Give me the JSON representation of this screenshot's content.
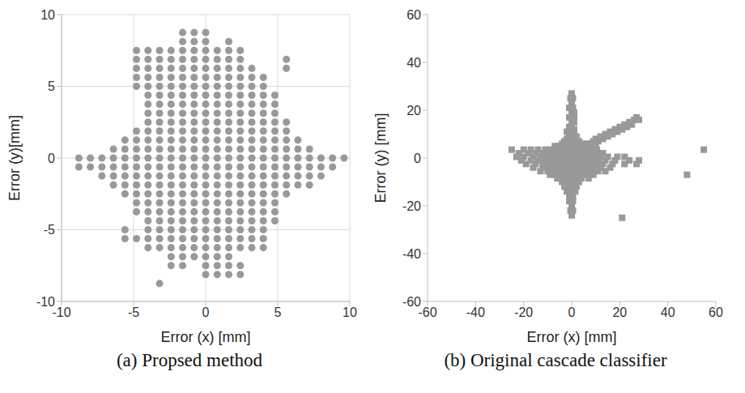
{
  "chart_data": [
    {
      "type": "scatter",
      "title": "(a) Propsed method",
      "xlabel": "Error (x) [mm]",
      "ylabel": "Error (y)[mm]",
      "xlim": [
        -10,
        10
      ],
      "ylim": [
        -10,
        10
      ],
      "xticks": [
        -10,
        -5,
        0,
        5,
        10
      ],
      "yticks": [
        -10,
        -5,
        0,
        5,
        10
      ],
      "grid": true,
      "color": "#999999",
      "marker": "circle",
      "rows": [
        {
          "y": 8.75,
          "x": [
            -1.6,
            -0.8,
            0
          ]
        },
        {
          "y": 8.125,
          "x": [
            -1.6,
            -0.8,
            0,
            1.6
          ]
        },
        {
          "y": 7.5,
          "x": [
            -4.8,
            -4,
            -3.2,
            -2.4,
            -1.6,
            -0.8,
            0,
            0.8,
            1.6,
            2.4
          ]
        },
        {
          "y": 6.875,
          "x": [
            -4.8,
            -4,
            -3.2,
            -2.4,
            -1.6,
            -0.8,
            0,
            0.8,
            1.6,
            2.4,
            5.6
          ]
        },
        {
          "y": 6.25,
          "x": [
            -4.8,
            -4,
            -3.2,
            -2.4,
            -1.6,
            -0.8,
            0,
            0.8,
            1.6,
            2.4,
            3.2,
            5.6
          ]
        },
        {
          "y": 5.625,
          "x": [
            -4.8,
            -4,
            -3.2,
            -2.4,
            -1.6,
            -0.8,
            0,
            0.8,
            1.6,
            2.4,
            3.2,
            4
          ]
        },
        {
          "y": 5,
          "x": [
            -4.8,
            -4,
            -3.2,
            -2.4,
            -1.6,
            -0.8,
            0,
            0.8,
            1.6,
            2.4,
            3.2,
            4
          ]
        },
        {
          "y": 4.375,
          "x": [
            -4,
            -3.2,
            -2.4,
            -1.6,
            -0.8,
            0,
            0.8,
            1.6,
            2.4,
            3.2,
            4,
            4.8
          ]
        },
        {
          "y": 3.75,
          "x": [
            -4,
            -3.2,
            -2.4,
            -1.6,
            -0.8,
            0,
            0.8,
            1.6,
            2.4,
            3.2,
            4,
            4.8
          ]
        },
        {
          "y": 3.125,
          "x": [
            -4,
            -3.2,
            -2.4,
            -1.6,
            -0.8,
            0,
            0.8,
            1.6,
            2.4,
            3.2,
            4,
            4.8
          ]
        },
        {
          "y": 2.5,
          "x": [
            -4,
            -3.2,
            -2.4,
            -1.6,
            -0.8,
            0,
            0.8,
            1.6,
            2.4,
            3.2,
            4,
            4.8,
            5.6
          ]
        },
        {
          "y": 1.875,
          "x": [
            -4.8,
            -4,
            -3.2,
            -2.4,
            -1.6,
            -0.8,
            0,
            0.8,
            1.6,
            2.4,
            3.2,
            4,
            4.8,
            5.6
          ]
        },
        {
          "y": 1.25,
          "x": [
            -5.6,
            -4.8,
            -4,
            -3.2,
            -2.4,
            -1.6,
            -0.8,
            0,
            0.8,
            1.6,
            2.4,
            3.2,
            4,
            4.8,
            5.6,
            6.4
          ]
        },
        {
          "y": 0.625,
          "x": [
            -6.4,
            -5.6,
            -4.8,
            -4,
            -3.2,
            -2.4,
            -1.6,
            -0.8,
            0,
            0.8,
            1.6,
            2.4,
            3.2,
            4,
            4.8,
            5.6,
            6.4,
            7.2
          ]
        },
        {
          "y": 0,
          "x": [
            -8.8,
            -8,
            -7.2,
            -6.4,
            -5.6,
            -4.8,
            -4,
            -3.2,
            -2.4,
            -1.6,
            -0.8,
            0,
            0.8,
            1.6,
            2.4,
            3.2,
            4,
            4.8,
            5.6,
            6.4,
            7.2,
            8,
            8.8,
            9.6
          ]
        },
        {
          "y": -0.625,
          "x": [
            -8.8,
            -8,
            -7.2,
            -6.4,
            -5.6,
            -4.8,
            -4,
            -3.2,
            -2.4,
            -1.6,
            -0.8,
            0,
            0.8,
            1.6,
            2.4,
            3.2,
            4,
            4.8,
            5.6,
            6.4,
            7.2,
            8,
            8.8
          ]
        },
        {
          "y": -1.25,
          "x": [
            -7.2,
            -6.4,
            -5.6,
            -4.8,
            -4,
            -3.2,
            -2.4,
            -1.6,
            -0.8,
            0,
            0.8,
            1.6,
            2.4,
            3.2,
            4,
            4.8,
            5.6,
            6.4,
            7.2,
            8
          ]
        },
        {
          "y": -1.875,
          "x": [
            -6.4,
            -5.6,
            -4.8,
            -4,
            -3.2,
            -2.4,
            -1.6,
            -0.8,
            0,
            0.8,
            1.6,
            2.4,
            3.2,
            4,
            4.8,
            5.6,
            6.4,
            7.2
          ]
        },
        {
          "y": -2.5,
          "x": [
            -5.6,
            -4.8,
            -4,
            -3.2,
            -2.4,
            -1.6,
            -0.8,
            0,
            0.8,
            1.6,
            2.4,
            3.2,
            4,
            4.8,
            5.6
          ]
        },
        {
          "y": -3.125,
          "x": [
            -4.8,
            -4,
            -3.2,
            -2.4,
            -1.6,
            -0.8,
            0,
            0.8,
            1.6,
            2.4,
            3.2,
            4,
            4.8
          ]
        },
        {
          "y": -3.75,
          "x": [
            -4.8,
            -4,
            -3.2,
            -2.4,
            -1.6,
            -0.8,
            0,
            0.8,
            1.6,
            2.4,
            3.2,
            4,
            4.8
          ]
        },
        {
          "y": -4.375,
          "x": [
            -4,
            -3.2,
            -2.4,
            -1.6,
            -0.8,
            0,
            0.8,
            1.6,
            2.4,
            3.2,
            4,
            4.8
          ]
        },
        {
          "y": -5,
          "x": [
            -5.6,
            -4,
            -3.2,
            -2.4,
            -1.6,
            -0.8,
            0,
            0.8,
            1.6,
            2.4,
            3.2,
            4
          ]
        },
        {
          "y": -5.625,
          "x": [
            -5.6,
            -4.8,
            -4,
            -3.2,
            -2.4,
            -1.6,
            -0.8,
            0,
            0.8,
            1.6,
            2.4,
            3.2,
            4
          ]
        },
        {
          "y": -6.25,
          "x": [
            -4,
            -3.2,
            -2.4,
            -1.6,
            -0.8,
            0,
            0.8,
            1.6,
            2.4,
            3.2,
            4
          ]
        },
        {
          "y": -6.875,
          "x": [
            -2.4,
            -1.6,
            -0.8,
            0,
            0.8,
            1.6
          ]
        },
        {
          "y": -7.5,
          "x": [
            -2.4,
            -1.6,
            0,
            0.8,
            1.6,
            2.4
          ]
        },
        {
          "y": -8.125,
          "x": [
            0,
            0.8,
            1.6,
            2.4
          ]
        },
        {
          "y": -8.75,
          "x": [
            -3.2
          ]
        }
      ]
    },
    {
      "type": "scatter",
      "title": "(b) Original cascade classifier",
      "xlabel": "Error (x) [mm]",
      "ylabel": "Error (y) [mm]",
      "xlim": [
        -60,
        60
      ],
      "ylim": [
        -60,
        60
      ],
      "xticks": [
        -60,
        -40,
        -20,
        0,
        20,
        40,
        60
      ],
      "yticks": [
        -60,
        -40,
        -20,
        0,
        20,
        40,
        60
      ],
      "grid": false,
      "color": "#999999",
      "marker": "square",
      "rows": [
        {
          "y": 27,
          "x": [
            0
          ]
        },
        {
          "y": 25,
          "x": [
            -0.5,
            0.5
          ]
        },
        {
          "y": 23,
          "x": [
            0
          ]
        },
        {
          "y": 21,
          "x": [
            -1,
            0.5
          ]
        },
        {
          "y": 19,
          "x": [
            0,
            1
          ]
        },
        {
          "y": 17,
          "x": [
            -1,
            0,
            1,
            27
          ]
        },
        {
          "y": 16,
          "x": [
            26,
            28
          ]
        },
        {
          "y": 15,
          "x": [
            0,
            1,
            24
          ]
        },
        {
          "y": 14,
          "x": [
            22,
            25
          ]
        },
        {
          "y": 13,
          "x": [
            -1,
            0,
            20,
            23
          ]
        },
        {
          "y": 12,
          "x": [
            1,
            18,
            21
          ]
        },
        {
          "y": 11,
          "x": [
            -2,
            0,
            16,
            19
          ]
        },
        {
          "y": 10,
          "x": [
            -1,
            1,
            14,
            17
          ]
        },
        {
          "y": 9,
          "x": [
            0,
            2,
            12,
            15
          ]
        },
        {
          "y": 8,
          "x": [
            -2,
            0,
            1,
            10,
            13
          ]
        },
        {
          "y": 7,
          "x": [
            -3,
            -1,
            1,
            3,
            9,
            11
          ]
        },
        {
          "y": 6,
          "x": [
            -4,
            -2,
            0,
            2,
            4,
            6,
            8,
            10
          ]
        },
        {
          "y": 5,
          "x": [
            -7,
            -5.5,
            -4,
            -2.5,
            -1,
            0.5,
            2,
            3.5,
            5,
            6.5,
            8
          ]
        },
        {
          "y": 3.5,
          "x": [
            -25,
            -20,
            -17,
            -14,
            -11,
            -9,
            -7.5,
            -6,
            -4.5,
            -3,
            -1.5,
            0,
            1.5,
            3,
            4.5,
            6,
            7.5,
            9,
            10.5,
            55
          ]
        },
        {
          "y": 2,
          "x": [
            -22,
            -18,
            -15,
            -12,
            -10,
            -8.5,
            -7,
            -5.5,
            -4,
            -2.5,
            -1,
            0.5,
            2,
            3.5,
            5,
            6.5,
            8,
            9.5,
            11,
            13
          ]
        },
        {
          "y": 0.5,
          "x": [
            -23,
            -20,
            -16,
            -13,
            -11,
            -9.5,
            -8,
            -6.5,
            -5,
            -3.5,
            -2,
            -0.5,
            1,
            2.5,
            4,
            5.5,
            7,
            8.5,
            10,
            12,
            15,
            19,
            22
          ]
        },
        {
          "y": -1,
          "x": [
            -21,
            -17,
            -14,
            -12,
            -10,
            -8.5,
            -7,
            -5.5,
            -4,
            -2.5,
            -1,
            0.5,
            2,
            3.5,
            5,
            6.5,
            8,
            9.5,
            11,
            14,
            18,
            24,
            28
          ]
        },
        {
          "y": -2.5,
          "x": [
            -19,
            -15,
            -12,
            -10,
            -8.5,
            -7,
            -5.5,
            -4,
            -2.5,
            -1,
            0.5,
            2,
            3.5,
            5,
            6.5,
            8,
            9.5,
            11,
            13,
            17,
            22,
            27
          ]
        },
        {
          "y": -4,
          "x": [
            -16,
            -12,
            -9.5,
            -8,
            -6.5,
            -5,
            -3.5,
            -2,
            -0.5,
            1,
            2.5,
            4,
            5.5,
            7,
            8.5,
            10,
            12,
            16
          ]
        },
        {
          "y": -5.5,
          "x": [
            -13,
            -10,
            -8,
            -6.5,
            -5,
            -3.5,
            -2,
            -0.5,
            1,
            2.5,
            4,
            5.5,
            7,
            8.5,
            11,
            14
          ]
        },
        {
          "y": -7,
          "x": [
            -9,
            -7,
            -5.5,
            -4,
            -2.5,
            -1,
            0.5,
            2,
            3.5,
            5,
            6.5,
            9,
            48
          ]
        },
        {
          "y": -8.5,
          "x": [
            -6,
            -4,
            -2,
            0,
            2,
            4,
            7
          ]
        },
        {
          "y": -10,
          "x": [
            -4,
            -2,
            0,
            1.5,
            3
          ]
        },
        {
          "y": -12,
          "x": [
            -3,
            -1,
            0.5,
            2
          ]
        },
        {
          "y": -14,
          "x": [
            -2,
            0,
            1.5
          ]
        },
        {
          "y": -16,
          "x": [
            -1,
            0.5
          ]
        },
        {
          "y": -18,
          "x": [
            -1,
            0.5
          ]
        },
        {
          "y": -20,
          "x": [
            0
          ]
        },
        {
          "y": -22,
          "x": [
            -0.5,
            0.5
          ]
        },
        {
          "y": -24,
          "x": [
            0
          ]
        },
        {
          "y": -25,
          "x": [
            21
          ]
        }
      ]
    }
  ]
}
